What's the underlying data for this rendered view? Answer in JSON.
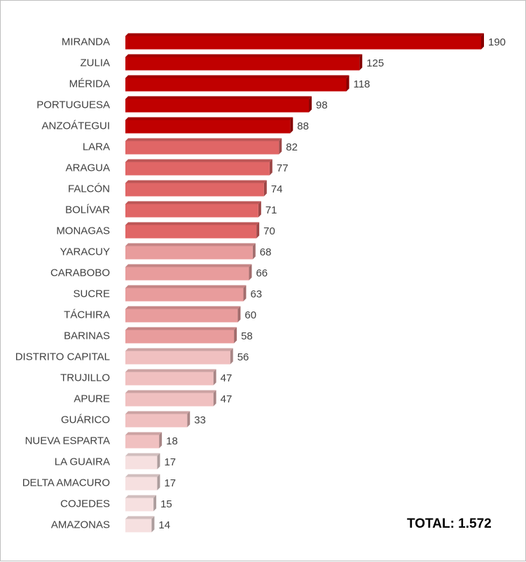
{
  "chart_data": {
    "type": "bar",
    "orientation": "horizontal",
    "categories": [
      "MIRANDA",
      "ZULIA",
      "MÉRIDA",
      "PORTUGUESA",
      "ANZOÁTEGUI",
      "LARA",
      "ARAGUA",
      "FALCÓN",
      "BOLÍVAR",
      "MONAGAS",
      "YARACUY",
      "CARABOBO",
      "SUCRE",
      "TÁCHIRA",
      "BARINAS",
      "DISTRITO CAPITAL",
      "TRUJILLO",
      "APURE",
      "GUÁRICO",
      "NUEVA ESPARTA",
      "LA GUAIRA",
      "DELTA AMACURO",
      "COJEDES",
      "AMAZONAS"
    ],
    "values": [
      190,
      125,
      118,
      98,
      88,
      82,
      77,
      74,
      71,
      70,
      68,
      66,
      63,
      60,
      58,
      56,
      47,
      47,
      33,
      18,
      17,
      17,
      15,
      14
    ],
    "title": "",
    "xlabel": "",
    "ylabel": "",
    "xlim": [
      0,
      190
    ],
    "grid": false,
    "legend": "none",
    "bar_colors": [
      "#c00000",
      "#c00000",
      "#c00000",
      "#c00000",
      "#c00000",
      "#e06666",
      "#e06666",
      "#e06666",
      "#e06666",
      "#e06666",
      "#e89c9c",
      "#e89c9c",
      "#e89c9c",
      "#e89c9c",
      "#e89c9c",
      "#f0c0c0",
      "#f0c0c0",
      "#f0c0c0",
      "#f0c0c0",
      "#f0c0c0",
      "#f6e0e0",
      "#f6e0e0",
      "#f6e0e0",
      "#f6e0e0"
    ],
    "annotation": "TOTAL: 1.572"
  }
}
